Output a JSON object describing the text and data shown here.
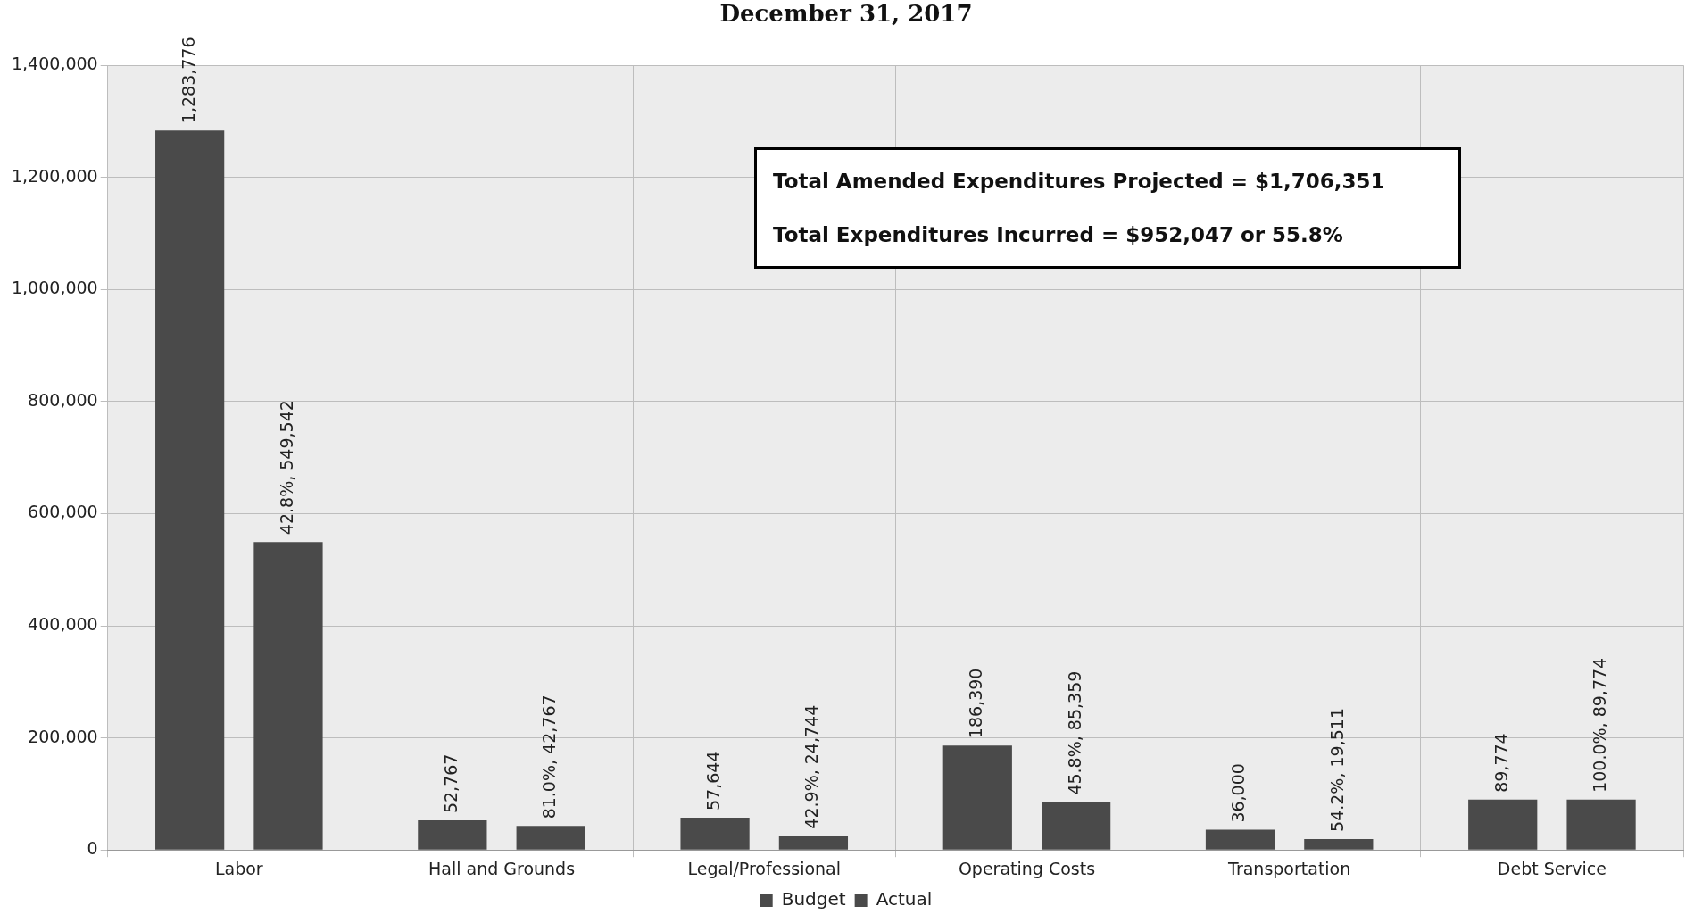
{
  "chart_data": {
    "type": "bar",
    "title": "December 31, 2017",
    "categories": [
      "Labor",
      "Hall and Grounds",
      "Legal/Professional",
      "Operating Costs",
      "Transportation",
      "Debt Service"
    ],
    "series": [
      {
        "name": "Budget",
        "color": "#4a4a4a",
        "values": [
          1283776,
          52767,
          57644,
          186390,
          36000,
          89774
        ],
        "value_labels": [
          "1,283,776",
          "52,767",
          "57,644",
          "186,390",
          "36,000",
          "89,774"
        ]
      },
      {
        "name": "Actual",
        "color": "#4a4a4a",
        "values": [
          549542,
          42767,
          24744,
          85359,
          19511,
          89774
        ],
        "value_labels": [
          "42.8%, 549,542",
          "81.0%, 42,767",
          "42.9%, 24,744",
          "45.8%, 85,359",
          "54.2%, 19,511",
          "100.0%, 89,774"
        ]
      }
    ],
    "ylim": [
      0,
      1400000
    ],
    "yticks": [
      {
        "value": 0,
        "label": "0"
      },
      {
        "value": 200000,
        "label": "200,000"
      },
      {
        "value": 400000,
        "label": "400,000"
      },
      {
        "value": 600000,
        "label": "600,000"
      },
      {
        "value": 800000,
        "label": "800,000"
      },
      {
        "value": 1000000,
        "label": "1,000,000"
      },
      {
        "value": 1200000,
        "label": "1,200,000"
      },
      {
        "value": 1400000,
        "label": "1,400,000"
      }
    ],
    "grid": true,
    "legend": "bottom",
    "annotations": [
      "Total Amended Expenditures Projected = $1,706,351",
      "Total Expenditures Incurred = $952,047 or 55.8%"
    ]
  }
}
